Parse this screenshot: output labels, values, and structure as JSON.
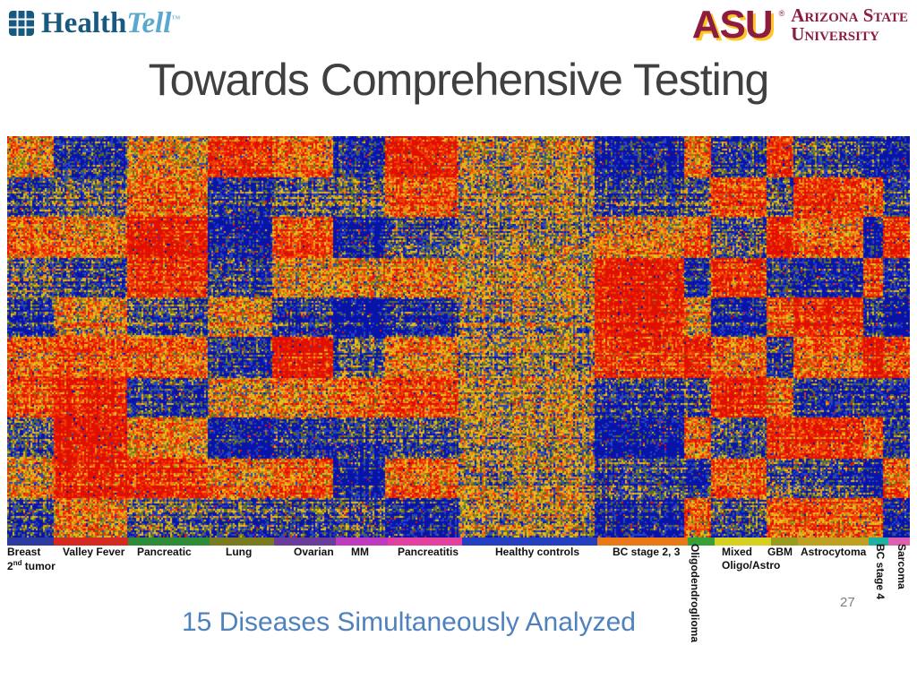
{
  "slide": {
    "title": "Towards Comprehensive Testing",
    "caption": "15 Diseases Simultaneously Analyzed",
    "page_number": "27"
  },
  "logos": {
    "healthtell": {
      "word1": "Health",
      "word2": "Tell",
      "trademark": "™"
    },
    "asu": {
      "acronym": "ASU",
      "registered": "®",
      "name_line1": "Arizona State",
      "name_line2": "University"
    }
  },
  "axis_labels": {
    "breast_line1": "Breast",
    "breast_line2_base": "2",
    "breast_line2_sup": "nd",
    "breast_line2_rest": " tumor",
    "valley_fever": "Valley Fever",
    "pancreatic": "Pancreatic",
    "lung": "Lung",
    "ovarian": "Ovarian",
    "mm": "MM",
    "pancreatitis": "Pancreatitis",
    "healthy_controls": "Healthy controls",
    "bc_stage_2_3": "BC stage 2, 3",
    "oligodendroglioma": "Oligodendroglioma",
    "mixed_line1": "Mixed",
    "mixed_line2": "Oligo/Astro",
    "gbm": "GBM",
    "astrocytoma": "Astrocytoma",
    "bc_stage_4": "BC stage 4",
    "sarcoma": "Sarcoma"
  },
  "chart_data": {
    "type": "heatmap",
    "row_bands": 10,
    "color_scale": {
      "high": "#e01000",
      "mid": "#ecc01c",
      "low": "#0814a8"
    },
    "segments": [
      {
        "name": "Breast 2nd tumor",
        "strip_color": "#2d3ba0",
        "width_fraction": 0.052,
        "red_blue_profile": [
          0.3,
          -0.4,
          0.5,
          -0.2,
          -0.5,
          0.4,
          0.6,
          -0.3,
          0.2,
          -0.4
        ]
      },
      {
        "name": "Valley Fever",
        "strip_color": "#d42a20",
        "width_fraction": 0.082,
        "red_blue_profile": [
          -0.5,
          -0.2,
          0.4,
          -0.4,
          0.3,
          0.5,
          0.9,
          1.0,
          0.9,
          0.4
        ]
      },
      {
        "name": "Pancreatic",
        "strip_color": "#2e8b37",
        "width_fraction": 0.09,
        "red_blue_profile": [
          0.2,
          0.5,
          1.0,
          0.8,
          -0.3,
          0.4,
          -0.5,
          0.3,
          0.8,
          -0.2
        ]
      },
      {
        "name": "Lung",
        "strip_color": "#7a7a20",
        "width_fraction": 0.072,
        "red_blue_profile": [
          0.8,
          -0.5,
          -0.7,
          -0.4,
          0.3,
          -0.6,
          0.2,
          -0.7,
          0.4,
          -0.3
        ]
      },
      {
        "name": "Ovarian",
        "strip_color": "#6a3d9a",
        "width_fraction": 0.068,
        "red_blue_profile": [
          0.4,
          -0.3,
          0.6,
          0.2,
          -0.5,
          0.9,
          0.3,
          -0.6,
          0.5,
          -0.4
        ]
      },
      {
        "name": "MM",
        "strip_color": "#c03ac0",
        "width_fraction": 0.058,
        "red_blue_profile": [
          -0.6,
          -0.2,
          -0.7,
          0.3,
          -0.8,
          -0.4,
          0.5,
          -0.5,
          -0.7,
          -0.3
        ]
      },
      {
        "name": "Pancreatitis",
        "strip_color": "#e040a0",
        "width_fraction": 0.082,
        "red_blue_profile": [
          0.9,
          0.6,
          -0.3,
          0.4,
          -0.5,
          0.3,
          0.7,
          -0.4,
          0.5,
          -0.6
        ]
      },
      {
        "name": "Healthy controls",
        "strip_color": "#2440c0",
        "width_fraction": 0.15,
        "red_blue_profile": [
          0.05,
          0.0,
          -0.05,
          0.1,
          0.0,
          -0.1,
          0.05,
          -0.05,
          0.0,
          0.05
        ]
      },
      {
        "name": "BC stage 2, 3",
        "strip_color": "#e87818",
        "width_fraction": 0.1,
        "red_blue_profile": [
          -0.7,
          -0.4,
          0.3,
          1.0,
          1.0,
          0.7,
          -0.5,
          -0.8,
          -0.4,
          -0.6
        ]
      },
      {
        "name": "Oligodendroglioma",
        "strip_color": "#38a038",
        "width_fraction": 0.03,
        "red_blue_profile": [
          0.4,
          -0.3,
          0.6,
          -0.5,
          0.3,
          0.8,
          -0.4,
          0.4,
          -0.6,
          0.5
        ]
      },
      {
        "name": "Mixed Oligo/Astro",
        "strip_color": "#d8d020",
        "width_fraction": 0.062,
        "red_blue_profile": [
          -0.5,
          0.7,
          -0.3,
          0.8,
          -0.6,
          0.4,
          0.9,
          -0.4,
          0.6,
          -0.3
        ]
      },
      {
        "name": "GBM",
        "strip_color": "#9a9a20",
        "width_fraction": 0.03,
        "red_blue_profile": [
          0.7,
          -0.4,
          0.9,
          -0.5,
          0.5,
          -0.7,
          0.4,
          0.7,
          -0.3,
          0.5
        ]
      },
      {
        "name": "Astrocytoma",
        "strip_color": "#c0a020",
        "width_fraction": 0.078,
        "red_blue_profile": [
          -0.4,
          0.8,
          0.5,
          -0.6,
          0.9,
          0.4,
          -0.5,
          0.8,
          -0.4,
          0.6
        ]
      },
      {
        "name": "BC stage 4",
        "strip_color": "#20b0a0",
        "width_fraction": 0.022,
        "red_blue_profile": [
          -0.7,
          0.5,
          -0.8,
          0.6,
          -0.5,
          0.9,
          -0.6,
          0.4,
          -0.8,
          0.5
        ]
      },
      {
        "name": "Sarcoma",
        "strip_color": "#e060b0",
        "width_fraction": 0.024,
        "red_blue_profile": [
          -0.8,
          -0.5,
          0.7,
          -0.6,
          -0.9,
          0.5,
          -0.7,
          -0.6,
          0.4,
          -0.7
        ]
      }
    ]
  }
}
